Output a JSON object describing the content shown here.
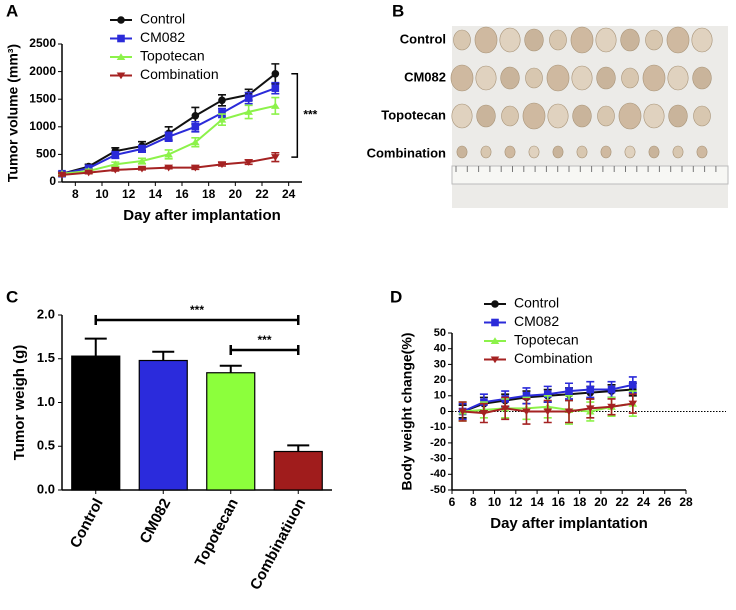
{
  "chart_data": [
    {
      "type": "line",
      "panel_label": "A",
      "x_label": "Day after implantation",
      "y_label": "Tumor volume (mm³)",
      "x": [
        7,
        9,
        11,
        13,
        15,
        17,
        19,
        21,
        23
      ],
      "series": [
        {
          "name": "Control",
          "color": "#111111",
          "marker": "circle",
          "values": [
            150,
            280,
            560,
            650,
            880,
            1200,
            1480,
            1580,
            1960
          ],
          "errors": [
            30,
            40,
            60,
            80,
            120,
            150,
            100,
            100,
            180
          ]
        },
        {
          "name": "CM082",
          "color": "#2b2bd9",
          "marker": "square",
          "values": [
            150,
            250,
            490,
            600,
            820,
            1000,
            1250,
            1520,
            1700
          ],
          "errors": [
            30,
            30,
            60,
            60,
            80,
            90,
            80,
            100,
            100
          ]
        },
        {
          "name": "Topotecan",
          "color": "#8cf24a",
          "marker": "triangle-up",
          "values": [
            150,
            200,
            320,
            380,
            500,
            720,
            1130,
            1270,
            1380
          ],
          "errors": [
            20,
            30,
            40,
            50,
            80,
            80,
            100,
            120,
            150
          ]
        },
        {
          "name": "Combination",
          "color": "#a52222",
          "marker": "triangle-down",
          "values": [
            130,
            170,
            220,
            240,
            260,
            260,
            320,
            360,
            450
          ],
          "errors": [
            20,
            20,
            20,
            20,
            20,
            30,
            30,
            40,
            80
          ]
        }
      ],
      "xlim": [
        7,
        25
      ],
      "xticks": [
        8,
        10,
        12,
        14,
        16,
        18,
        20,
        22,
        24
      ],
      "ylim": [
        0,
        2500
      ],
      "yticks": [
        0,
        500,
        1000,
        1500,
        2000,
        2500
      ],
      "annotations": [
        "***"
      ]
    },
    {
      "type": "bar",
      "panel_label": "C",
      "y_label": "Tumor weigh (g)",
      "categories": [
        "Control",
        "CM082",
        "Topotecan",
        "Combinatiuon"
      ],
      "values": [
        1.53,
        1.48,
        1.34,
        0.44
      ],
      "errors": [
        0.2,
        0.1,
        0.08,
        0.07
      ],
      "colors": [
        "#000000",
        "#2b2bdc",
        "#8cff3c",
        "#a01c1c"
      ],
      "ylim": [
        0,
        2.0
      ],
      "yticks": [
        {
          "value": 0,
          "label": "0.0"
        },
        0.5,
        {
          "value": 1,
          "label": "1.0"
        },
        1.5,
        {
          "value": 2,
          "label": "2.0"
        }
      ],
      "annotations": [
        "***",
        "***"
      ]
    },
    {
      "type": "line",
      "panel_label": "D",
      "x_label": "Day after implantation",
      "y_label": "Body weight change(%)",
      "x": [
        7,
        9,
        11,
        13,
        15,
        17,
        19,
        21,
        23
      ],
      "series": [
        {
          "name": "Control",
          "color": "#111111",
          "marker": "circle",
          "values": [
            0,
            5,
            7,
            9,
            10,
            11,
            12,
            13,
            14
          ],
          "errors": [
            4,
            4,
            4,
            4,
            4,
            4,
            4,
            4,
            4
          ]
        },
        {
          "name": "CM082",
          "color": "#2b2bd9",
          "marker": "square",
          "values": [
            0,
            6,
            8,
            10,
            11,
            13,
            14,
            14,
            17
          ],
          "errors": [
            5,
            5,
            5,
            5,
            5,
            5,
            5,
            5,
            5
          ]
        },
        {
          "name": "Topotecan",
          "color": "#8cf24a",
          "marker": "triangle-up",
          "values": [
            0,
            1,
            2,
            2,
            3,
            1,
            0,
            3,
            5
          ],
          "errors": [
            6,
            5,
            6,
            7,
            7,
            9,
            6,
            6,
            8
          ]
        },
        {
          "name": "Combination",
          "color": "#a52222",
          "marker": "triangle-down",
          "values": [
            0,
            -1,
            2,
            0,
            0,
            0,
            2,
            3,
            5
          ],
          "errors": [
            6,
            6,
            7,
            8,
            7,
            7,
            6,
            5,
            6
          ]
        }
      ],
      "xlim": [
        6,
        28
      ],
      "xticks": [
        6,
        8,
        10,
        12,
        14,
        16,
        18,
        20,
        22,
        24,
        26,
        28
      ],
      "ylim": [
        -50,
        50
      ],
      "yticks": [
        -50,
        -40,
        -30,
        -20,
        -10,
        0,
        10,
        20,
        30,
        40,
        50
      ]
    }
  ],
  "photo": {
    "panel_label": "B",
    "rows": [
      "Control",
      "CM082",
      "Topotecan",
      "Combination"
    ]
  }
}
